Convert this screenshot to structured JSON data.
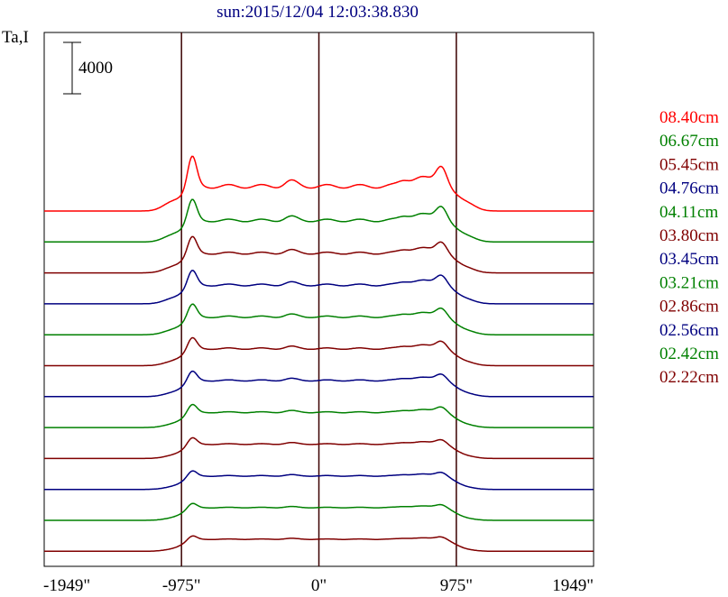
{
  "chart_data": {
    "type": "line",
    "title": "sun:2015/12/04 12:03:38.830",
    "ylabel": "Ta,I",
    "scale_bar_label": "4000",
    "scale_bar_value": 4000,
    "x_ticks": [
      {
        "value": -1949,
        "label": "-1949\""
      },
      {
        "value": -975,
        "label": "-975\""
      },
      {
        "value": 0,
        "label": "0\""
      },
      {
        "value": 975,
        "label": "975\""
      },
      {
        "value": 1949,
        "label": "1949\""
      }
    ],
    "xlim": [
      -1949,
      1949
    ],
    "vertical_lines": [
      -975,
      0,
      975
    ],
    "grid": false,
    "legend_position": "right",
    "series": [
      {
        "name": "08.40cm",
        "color": "#ff0000",
        "amp": 1.0
      },
      {
        "name": "06.67cm",
        "color": "#008000",
        "amp": 0.82
      },
      {
        "name": "05.45cm",
        "color": "#800000",
        "amp": 0.72
      },
      {
        "name": "04.76cm",
        "color": "#000080",
        "amp": 0.67
      },
      {
        "name": "04.11cm",
        "color": "#008000",
        "amp": 0.62
      },
      {
        "name": "03.80cm",
        "color": "#800000",
        "amp": 0.57
      },
      {
        "name": "03.45cm",
        "color": "#000080",
        "amp": 0.52
      },
      {
        "name": "03.21cm",
        "color": "#008000",
        "amp": 0.47
      },
      {
        "name": "02.86cm",
        "color": "#800000",
        "amp": 0.42
      },
      {
        "name": "02.56cm",
        "color": "#000080",
        "amp": 0.37
      },
      {
        "name": "02.42cm",
        "color": "#008000",
        "amp": 0.33
      },
      {
        "name": "02.22cm",
        "color": "#800000",
        "amp": 0.29
      }
    ]
  }
}
